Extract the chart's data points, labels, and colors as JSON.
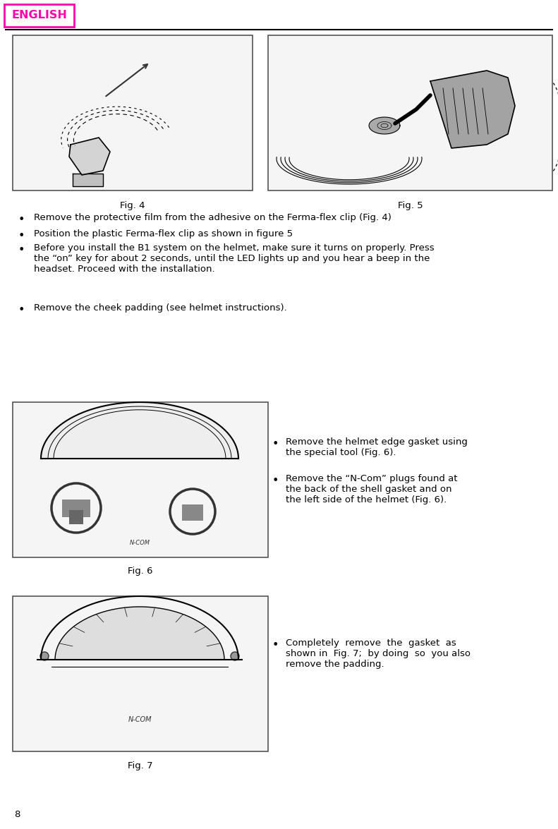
{
  "page_number": "8",
  "bg_color": "#ffffff",
  "header_label": "ENGLISH",
  "header_label_color": "#ff00aa",
  "header_line_color": "#000000",
  "fig4_caption": "Fig. 4",
  "fig5_caption": "Fig. 5",
  "fig6_caption": "Fig. 6",
  "fig7_caption": "Fig. 7",
  "bullet1": "Remove the protective film from the adhesive on the Ferma-flex clip (Fig. 4)",
  "bullet2": "Position the plastic Ferma-flex clip as shown in figure 5",
  "bullet3": "Before you install the B1 system on the helmet, make sure it turns on properly. Press\nthe “on” key for about 2 seconds, until the LED lights up and you hear a beep in the\nheadset. Proceed with the installation.",
  "bullet4": "Remove the cheek padding (see helmet instructions).",
  "bullet5": "Remove the helmet edge gasket using\nthe special tool (Fig. 6).",
  "bullet6": "Remove the “N-Com” plugs found at\nthe back of the shell gasket and on\nthe left side of the helmet (Fig. 6).",
  "bullet7": "Completely  remove  the  gasket  as\nshown in  Fig. 7;  by doing  so  you also\nremove the padding.",
  "font_size_bullet": 9.5,
  "font_size_caption": 9.5,
  "font_family": "DejaVu Sans"
}
